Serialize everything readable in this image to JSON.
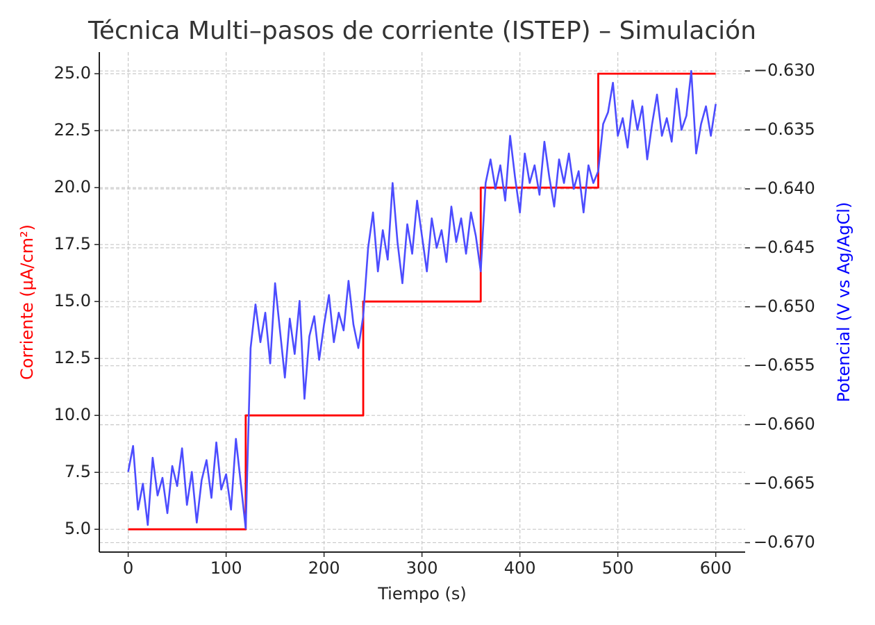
{
  "chart_data": {
    "type": "line",
    "title": "Técnica Multi–pasos de corriente (ISTEP) – Simulación",
    "xlabel": "Tiempo (s)",
    "ylabel": "Corriente (µA/cm²)",
    "y2label": "Potencial (V vs Ag/AgCl)",
    "ylabel_color": "#ff0000",
    "y2label_color": "#0000ff",
    "grid": true,
    "xlim": [
      -29.5,
      630
    ],
    "xticks": [
      0,
      100,
      200,
      300,
      400,
      500,
      600
    ],
    "ylim": [
      4.0,
      25.95
    ],
    "yticks": [
      {
        "value": 5,
        "label": "5.0"
      },
      7.5,
      {
        "value": 10,
        "label": "10.0"
      },
      12.5,
      {
        "value": 15,
        "label": "15.0"
      },
      17.5,
      {
        "value": 20,
        "label": "20.0"
      },
      22.5,
      {
        "value": 25,
        "label": "25.0"
      }
    ],
    "y2lim": [
      -0.6708,
      -0.6284
    ],
    "y2ticks": [
      {
        "value": -0.67,
        "label": "−0.670"
      },
      {
        "value": -0.665,
        "label": "−0.665"
      },
      {
        "value": -0.66,
        "label": "−0.660"
      },
      {
        "value": -0.655,
        "label": "−0.655"
      },
      {
        "value": -0.65,
        "label": "−0.650"
      },
      {
        "value": -0.645,
        "label": "−0.645"
      },
      {
        "value": -0.64,
        "label": "−0.640"
      },
      {
        "value": -0.635,
        "label": "−0.635"
      },
      {
        "value": -0.63,
        "label": "−0.630"
      }
    ],
    "series": [
      {
        "name": "Corriente",
        "color": "#ff0000",
        "axis": "y",
        "x": [
          0,
          120,
          120,
          240,
          240,
          360,
          360,
          480,
          480,
          600
        ],
        "values": [
          5,
          5,
          10,
          10,
          15,
          15,
          20,
          20,
          25,
          25
        ]
      },
      {
        "name": "Potencial",
        "color": "#4c4cff",
        "axis": "y2",
        "x": [
          0,
          5,
          10,
          15,
          20,
          25,
          30,
          35,
          40,
          45,
          50,
          55,
          60,
          65,
          70,
          75,
          80,
          85,
          90,
          95,
          100,
          105,
          110,
          115,
          120,
          125,
          130,
          135,
          140,
          145,
          150,
          155,
          160,
          165,
          170,
          175,
          180,
          185,
          190,
          195,
          200,
          205,
          210,
          215,
          220,
          225,
          230,
          235,
          240,
          245,
          250,
          255,
          260,
          265,
          270,
          275,
          280,
          285,
          290,
          295,
          300,
          305,
          310,
          315,
          320,
          325,
          330,
          335,
          340,
          345,
          350,
          355,
          360,
          365,
          370,
          375,
          380,
          385,
          390,
          395,
          400,
          405,
          410,
          415,
          420,
          425,
          430,
          435,
          440,
          445,
          450,
          455,
          460,
          465,
          470,
          475,
          480,
          485,
          490,
          495,
          500,
          505,
          510,
          515,
          520,
          525,
          530,
          535,
          540,
          545,
          550,
          555,
          560,
          565,
          570,
          575,
          580,
          585,
          590,
          595,
          600
        ],
        "values": [
          -0.664,
          -0.6618,
          -0.6672,
          -0.665,
          -0.6685,
          -0.6628,
          -0.666,
          -0.6645,
          -0.6675,
          -0.6635,
          -0.6652,
          -0.662,
          -0.6668,
          -0.664,
          -0.6683,
          -0.6647,
          -0.663,
          -0.6662,
          -0.6615,
          -0.6655,
          -0.6642,
          -0.6672,
          -0.6612,
          -0.665,
          -0.6688,
          -0.6535,
          -0.6498,
          -0.653,
          -0.6505,
          -0.6548,
          -0.648,
          -0.652,
          -0.656,
          -0.651,
          -0.654,
          -0.6495,
          -0.6578,
          -0.6525,
          -0.6508,
          -0.6545,
          -0.6515,
          -0.649,
          -0.653,
          -0.6505,
          -0.652,
          -0.6478,
          -0.6515,
          -0.6535,
          -0.6508,
          -0.645,
          -0.642,
          -0.647,
          -0.6435,
          -0.646,
          -0.6395,
          -0.6445,
          -0.648,
          -0.643,
          -0.6455,
          -0.641,
          -0.644,
          -0.647,
          -0.6425,
          -0.645,
          -0.6435,
          -0.6462,
          -0.6415,
          -0.6445,
          -0.6425,
          -0.6455,
          -0.642,
          -0.644,
          -0.647,
          -0.6395,
          -0.6375,
          -0.64,
          -0.638,
          -0.641,
          -0.6355,
          -0.639,
          -0.642,
          -0.637,
          -0.6395,
          -0.638,
          -0.6405,
          -0.636,
          -0.639,
          -0.6415,
          -0.6375,
          -0.6395,
          -0.637,
          -0.64,
          -0.6385,
          -0.642,
          -0.638,
          -0.6395,
          -0.6385,
          -0.6345,
          -0.6335,
          -0.631,
          -0.6355,
          -0.634,
          -0.6365,
          -0.6325,
          -0.635,
          -0.633,
          -0.6375,
          -0.6345,
          -0.632,
          -0.6355,
          -0.634,
          -0.636,
          -0.6315,
          -0.635,
          -0.6338,
          -0.63,
          -0.637,
          -0.6345,
          -0.633,
          -0.6355,
          -0.6328
        ]
      }
    ]
  }
}
